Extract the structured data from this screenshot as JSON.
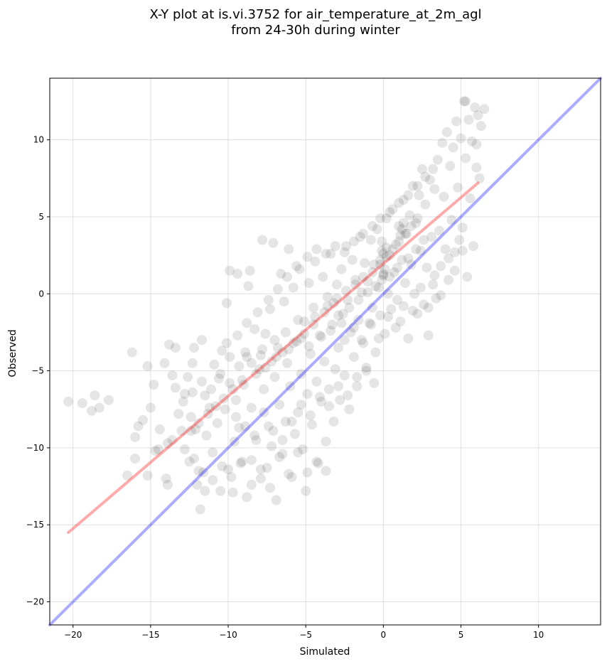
{
  "chart_data": {
    "type": "scatter",
    "title_line1": "X-Y plot at is.vi.3752 for air_temperature_at_2m_agl",
    "title_line2": "from 24-30h during winter",
    "xlabel": "Simulated",
    "ylabel": "Observed",
    "xlim": [
      -21.5,
      14
    ],
    "ylim": [
      -21.5,
      14
    ],
    "xticks": [
      -20,
      -15,
      -10,
      -5,
      0,
      5,
      10
    ],
    "yticks": [
      -20,
      -15,
      -10,
      -5,
      0,
      5,
      10
    ],
    "xtick_labels": [
      "−20",
      "−15",
      "−10",
      "−5",
      "0",
      "5",
      "10"
    ],
    "ytick_labels": [
      "−20",
      "−15",
      "−10",
      "−5",
      "0",
      "5",
      "10"
    ],
    "grid": true,
    "point_color": "#000000",
    "fit_line": {
      "color": "#ff0000",
      "x": [
        -20.3,
        6.1
      ],
      "y": [
        -15.5,
        7.2
      ]
    },
    "identity_line": {
      "color": "#0000ff",
      "x": [
        -21.5,
        14
      ],
      "y": [
        -21.5,
        14
      ]
    },
    "points": [
      [
        -20.3,
        -7.0
      ],
      [
        -19.4,
        -7.1
      ],
      [
        -18.8,
        -7.6
      ],
      [
        -18.6,
        -6.6
      ],
      [
        -18.3,
        -7.4
      ],
      [
        -17.7,
        -6.9
      ],
      [
        -16.5,
        -11.8
      ],
      [
        -16.2,
        -3.8
      ],
      [
        -16.0,
        -10.7
      ],
      [
        -15.5,
        -8.2
      ],
      [
        -15.2,
        -4.7
      ],
      [
        -15.2,
        -11.8
      ],
      [
        -15.0,
        -7.4
      ],
      [
        -14.7,
        -10.2
      ],
      [
        -14.5,
        -10.1
      ],
      [
        -14.0,
        -12.0
      ],
      [
        -13.9,
        -12.4
      ],
      [
        -13.8,
        -3.3
      ],
      [
        -13.6,
        -9.5
      ],
      [
        -13.4,
        -3.5
      ],
      [
        -13.2,
        -7.8
      ],
      [
        -13.0,
        -8.9
      ],
      [
        -12.8,
        -6.5
      ],
      [
        -12.6,
        -5.4
      ],
      [
        -12.5,
        -10.9
      ],
      [
        -12.4,
        -8.0
      ],
      [
        -12.3,
        -4.5
      ],
      [
        -12.2,
        -3.5
      ],
      [
        -12.1,
        -8.8
      ],
      [
        -12.0,
        -12.4
      ],
      [
        -11.9,
        -11.5
      ],
      [
        -11.8,
        -14.0
      ],
      [
        -11.7,
        -3.0
      ],
      [
        -11.5,
        -6.6
      ],
      [
        -11.5,
        -12.8
      ],
      [
        -11.4,
        -9.2
      ],
      [
        -11.2,
        -7.4
      ],
      [
        -11.0,
        -10.3
      ],
      [
        -10.9,
        -4.6
      ],
      [
        -10.7,
        -8.4
      ],
      [
        -10.6,
        -5.5
      ],
      [
        -10.5,
        -12.8
      ],
      [
        -10.4,
        -3.7
      ],
      [
        -10.2,
        -7.5
      ],
      [
        -10.1,
        -0.6
      ],
      [
        -10.0,
        -11.4
      ],
      [
        -9.9,
        -4.1
      ],
      [
        -9.9,
        1.5
      ],
      [
        -9.7,
        -12.9
      ],
      [
        -9.6,
        -9.6
      ],
      [
        -9.5,
        -6.9
      ],
      [
        -9.4,
        1.3
      ],
      [
        -9.3,
        -8.7
      ],
      [
        -9.2,
        -11.0
      ],
      [
        -9.0,
        -5.9
      ],
      [
        -8.9,
        -3.8
      ],
      [
        -8.8,
        -13.2
      ],
      [
        -8.7,
        0.5
      ],
      [
        -8.6,
        1.5
      ],
      [
        -8.5,
        -10.8
      ],
      [
        -8.5,
        -7.4
      ],
      [
        -8.3,
        -2.3
      ],
      [
        -8.2,
        -9.5
      ],
      [
        -8.0,
        -4.9
      ],
      [
        -7.9,
        -12.0
      ],
      [
        -7.8,
        3.5
      ],
      [
        -7.7,
        -6.2
      ],
      [
        -7.6,
        -2.6
      ],
      [
        -7.5,
        -11.3
      ],
      [
        -7.4,
        -8.6
      ],
      [
        -7.3,
        -1.0
      ],
      [
        -7.2,
        -9.9
      ],
      [
        -7.1,
        3.3
      ],
      [
        -7.0,
        -5.4
      ],
      [
        -6.9,
        -13.4
      ],
      [
        -6.8,
        -3.5
      ],
      [
        -6.7,
        -7.2
      ],
      [
        -6.6,
        1.3
      ],
      [
        -6.5,
        -10.4
      ],
      [
        -6.4,
        -0.5
      ],
      [
        -6.3,
        -8.3
      ],
      [
        -6.2,
        -4.5
      ],
      [
        -6.1,
        2.9
      ],
      [
        -6.0,
        -6.0
      ],
      [
        -5.9,
        -11.9
      ],
      [
        -5.8,
        0.4
      ],
      [
        -5.7,
        -9.1
      ],
      [
        -5.6,
        -3.1
      ],
      [
        -5.5,
        -7.7
      ],
      [
        -5.4,
        1.6
      ],
      [
        -5.3,
        -5.2
      ],
      [
        -5.2,
        -10.1
      ],
      [
        -5.1,
        -1.8
      ],
      [
        -5.0,
        -12.8
      ],
      [
        -4.9,
        -6.5
      ],
      [
        -4.8,
        0.7
      ],
      [
        -4.7,
        -3.9
      ],
      [
        -4.6,
        -8.5
      ],
      [
        -4.5,
        -0.9
      ],
      [
        -4.4,
        2.1
      ],
      [
        -4.3,
        -5.7
      ],
      [
        -4.2,
        -11.0
      ],
      [
        -4.1,
        -2.7
      ],
      [
        -4.0,
        -7.0
      ],
      [
        -3.9,
        1.1
      ],
      [
        -3.8,
        -4.4
      ],
      [
        -3.7,
        -9.6
      ],
      [
        -3.6,
        -0.2
      ],
      [
        -3.5,
        -6.2
      ],
      [
        -3.4,
        2.6
      ],
      [
        -3.3,
        -2.0
      ],
      [
        -3.2,
        -8.3
      ],
      [
        -3.1,
        -4.9
      ],
      [
        -3.0,
        0.6
      ],
      [
        -2.9,
        -3.5
      ],
      [
        -2.8,
        -6.9
      ],
      [
        -2.7,
        1.6
      ],
      [
        -2.6,
        -1.3
      ],
      [
        -2.5,
        -5.3
      ],
      [
        -2.4,
        3.1
      ],
      [
        -2.3,
        -0.4
      ],
      [
        -2.2,
        -7.5
      ],
      [
        -2.1,
        -2.5
      ],
      [
        -2.0,
        2.2
      ],
      [
        -1.9,
        -4.1
      ],
      [
        -1.8,
        0.9
      ],
      [
        -1.7,
        -6.0
      ],
      [
        -1.6,
        -1.7
      ],
      [
        -1.5,
        3.7
      ],
      [
        -1.4,
        0.1
      ],
      [
        -1.3,
        -3.2
      ],
      [
        -1.2,
        2.0
      ],
      [
        -1.1,
        -5.0
      ],
      [
        -1.0,
        0.8
      ],
      [
        -0.9,
        -1.9
      ],
      [
        -0.8,
        3.5
      ],
      [
        -0.7,
        -0.9
      ],
      [
        -0.6,
        1.9
      ],
      [
        -0.5,
        -3.8
      ],
      [
        -0.4,
        4.2
      ],
      [
        -0.3,
        0.4
      ],
      [
        -0.2,
        -1.4
      ],
      [
        -0.1,
        2.8
      ],
      [
        0.0,
        1.2
      ],
      [
        0.1,
        -2.6
      ],
      [
        0.2,
        4.9
      ],
      [
        0.3,
        0.0
      ],
      [
        0.4,
        2.5
      ],
      [
        0.5,
        -1.0
      ],
      [
        0.6,
        5.5
      ],
      [
        0.7,
        1.4
      ],
      [
        0.8,
        3.2
      ],
      [
        0.9,
        -0.4
      ],
      [
        1.0,
        4.4
      ],
      [
        1.1,
        -1.8
      ],
      [
        1.2,
        2.2
      ],
      [
        1.3,
        6.1
      ],
      [
        1.4,
        0.7
      ],
      [
        1.5,
        3.9
      ],
      [
        1.6,
        -2.9
      ],
      [
        1.7,
        5.1
      ],
      [
        1.8,
        1.9
      ],
      [
        1.9,
        7.0
      ],
      [
        2.0,
        0.0
      ],
      [
        2.1,
        4.6
      ],
      [
        2.2,
        -1.3
      ],
      [
        2.3,
        6.4
      ],
      [
        2.4,
        2.8
      ],
      [
        2.5,
        8.1
      ],
      [
        2.6,
        -0.7
      ],
      [
        2.7,
        5.8
      ],
      [
        2.8,
        1.7
      ],
      [
        2.9,
        -2.7
      ],
      [
        3.0,
        7.4
      ],
      [
        3.1,
        3.7
      ],
      [
        3.2,
        0.6
      ],
      [
        3.3,
        6.8
      ],
      [
        3.4,
        -0.3
      ],
      [
        3.5,
        8.7
      ],
      [
        3.6,
        4.1
      ],
      [
        3.7,
        1.8
      ],
      [
        3.8,
        9.8
      ],
      [
        3.9,
        6.3
      ],
      [
        4.0,
        2.9
      ],
      [
        4.1,
        10.5
      ],
      [
        4.2,
        0.9
      ],
      [
        4.3,
        8.3
      ],
      [
        4.4,
        4.8
      ],
      [
        4.5,
        9.5
      ],
      [
        4.6,
        2.7
      ],
      [
        4.7,
        11.2
      ],
      [
        4.8,
        6.9
      ],
      [
        4.9,
        3.5
      ],
      [
        5.0,
        10.1
      ],
      [
        5.1,
        2.8
      ],
      [
        5.2,
        12.5
      ],
      [
        5.3,
        8.8
      ],
      [
        5.4,
        1.1
      ],
      [
        5.5,
        11.3
      ],
      [
        5.6,
        6.2
      ],
      [
        5.7,
        9.9
      ],
      [
        5.8,
        3.1
      ],
      [
        5.9,
        12.1
      ],
      [
        6.0,
        8.2
      ],
      [
        6.1,
        11.6
      ],
      [
        6.2,
        7.5
      ],
      [
        6.3,
        10.9
      ],
      [
        6.5,
        12.0
      ],
      [
        6.0,
        9.7
      ],
      [
        5.3,
        12.5
      ],
      [
        -3.8,
        -1.2
      ],
      [
        -3.2,
        -0.6
      ],
      [
        -2.7,
        -1.9
      ],
      [
        -4.4,
        -1.5
      ],
      [
        -5.1,
        -2.6
      ],
      [
        -5.8,
        -3.2
      ],
      [
        -6.5,
        -3.8
      ],
      [
        -7.2,
        -4.4
      ],
      [
        -7.9,
        -4.0
      ],
      [
        -8.5,
        -4.5
      ],
      [
        -3.6,
        -0.8
      ],
      [
        -3.0,
        -0.3
      ],
      [
        -2.4,
        0.2
      ],
      [
        -1.8,
        0.6
      ],
      [
        -1.3,
        1.1
      ],
      [
        -0.7,
        1.4
      ],
      [
        -0.2,
        1.9
      ],
      [
        0.2,
        2.4
      ],
      [
        0.6,
        2.9
      ],
      [
        1.0,
        3.4
      ],
      [
        1.4,
        3.9
      ],
      [
        1.8,
        4.4
      ],
      [
        2.2,
        4.9
      ],
      [
        -0.1,
        0.9
      ],
      [
        0.0,
        1.3
      ],
      [
        0.1,
        1.6
      ],
      [
        -0.2,
        2.2
      ],
      [
        0.0,
        2.6
      ],
      [
        0.2,
        3.0
      ],
      [
        -0.1,
        3.4
      ],
      [
        1.2,
        4.2
      ],
      [
        1.3,
        4.6
      ],
      [
        1.1,
        3.8
      ],
      [
        -4.5,
        -2.0
      ],
      [
        -5.3,
        -2.9
      ],
      [
        -6.1,
        -3.6
      ],
      [
        -6.9,
        -4.1
      ],
      [
        -7.6,
        -4.8
      ],
      [
        -8.2,
        -5.2
      ],
      [
        -2.2,
        -0.9
      ],
      [
        -1.6,
        -0.4
      ],
      [
        -1.0,
        0.1
      ],
      [
        -0.5,
        0.5
      ],
      [
        0.4,
        1.1
      ],
      [
        0.9,
        1.7
      ],
      [
        1.6,
        2.3
      ],
      [
        2.1,
        2.9
      ],
      [
        2.6,
        3.5
      ],
      [
        -9.1,
        -5.6
      ],
      [
        -9.7,
        -6.2
      ],
      [
        -10.3,
        -6.8
      ],
      [
        -10.8,
        -7.3
      ],
      [
        -11.3,
        -7.8
      ],
      [
        -11.9,
        -8.4
      ],
      [
        -12.4,
        -8.9
      ],
      [
        -3.4,
        -2.4
      ],
      [
        -2.9,
        -1.4
      ],
      [
        -4.0,
        -2.8
      ],
      [
        -4.8,
        -3.4
      ],
      [
        -5.5,
        -1.7
      ],
      [
        -6.3,
        -2.5
      ],
      [
        -7.0,
        -3.0
      ],
      [
        -7.8,
        -3.6
      ],
      [
        -8.8,
        -4.1
      ],
      [
        -2.5,
        -3.0
      ],
      [
        -1.9,
        -2.2
      ],
      [
        -1.4,
        -3.0
      ],
      [
        -0.8,
        -2.0
      ],
      [
        -0.3,
        -2.9
      ],
      [
        0.3,
        -1.5
      ],
      [
        0.8,
        -2.2
      ],
      [
        1.3,
        -0.8
      ],
      [
        1.9,
        -1.1
      ],
      [
        2.4,
        0.4
      ],
      [
        2.9,
        -0.9
      ],
      [
        3.3,
        1.2
      ],
      [
        3.7,
        -0.1
      ],
      [
        4.2,
        2.3
      ],
      [
        4.6,
        1.5
      ],
      [
        5.1,
        4.3
      ],
      [
        -9.5,
        -8.0
      ],
      [
        -8.9,
        -8.6
      ],
      [
        -8.3,
        -9.2
      ],
      [
        -7.7,
        -7.7
      ],
      [
        -7.1,
        -8.9
      ],
      [
        -6.5,
        -9.5
      ],
      [
        -5.9,
        -8.3
      ],
      [
        -5.3,
        -7.2
      ],
      [
        -4.7,
        -7.9
      ],
      [
        -4.1,
        -6.7
      ],
      [
        -3.5,
        -7.3
      ],
      [
        -2.9,
        -6.0
      ],
      [
        -2.3,
        -6.6
      ],
      [
        -1.7,
        -5.4
      ],
      [
        -1.1,
        -4.8
      ],
      [
        -0.6,
        -5.8
      ],
      [
        -12.8,
        -10.1
      ],
      [
        -12.2,
        -10.7
      ],
      [
        -11.6,
        -11.6
      ],
      [
        -11.0,
        -12.1
      ],
      [
        -10.4,
        -11.2
      ],
      [
        -9.8,
        -11.9
      ],
      [
        -9.1,
        -10.9
      ],
      [
        -8.5,
        -12.4
      ],
      [
        -7.9,
        -11.4
      ],
      [
        -7.3,
        -12.6
      ],
      [
        -6.7,
        -10.6
      ],
      [
        -6.1,
        -11.7
      ],
      [
        -5.5,
        -10.3
      ],
      [
        -4.9,
        -11.6
      ],
      [
        -4.3,
        -10.9
      ],
      [
        -3.7,
        -11.5
      ],
      [
        -13.4,
        -6.1
      ],
      [
        -12.9,
        -7.0
      ],
      [
        -12.3,
        -6.4
      ],
      [
        -11.7,
        -5.7
      ],
      [
        -11.1,
        -6.2
      ],
      [
        -10.5,
        -5.2
      ],
      [
        -9.9,
        -5.8
      ],
      [
        -9.3,
        -4.7
      ],
      [
        -10.1,
        -3.2
      ],
      [
        -9.4,
        -2.7
      ],
      [
        -8.8,
        -1.9
      ],
      [
        -8.1,
        -1.2
      ],
      [
        -7.4,
        -0.4
      ],
      [
        -6.8,
        0.3
      ],
      [
        -6.2,
        1.1
      ],
      [
        -5.6,
        1.8
      ],
      [
        -4.9,
        2.4
      ],
      [
        -4.3,
        2.9
      ],
      [
        -3.7,
        2.6
      ],
      [
        -3.1,
        3.1
      ],
      [
        -2.5,
        2.7
      ],
      [
        -1.9,
        3.4
      ],
      [
        -1.3,
        3.9
      ],
      [
        -0.7,
        4.4
      ],
      [
        -0.2,
        4.9
      ],
      [
        0.4,
        5.3
      ],
      [
        1.0,
        5.9
      ],
      [
        1.6,
        6.4
      ],
      [
        2.2,
        7.0
      ],
      [
        2.7,
        7.6
      ],
      [
        3.2,
        8.1
      ],
      [
        -14.8,
        -5.9
      ],
      [
        -14.1,
        -4.5
      ],
      [
        -13.6,
        -5.3
      ],
      [
        -15.8,
        -8.6
      ],
      [
        -16.0,
        -9.3
      ],
      [
        -14.4,
        -8.8
      ],
      [
        -13.9,
        -9.7
      ]
    ]
  }
}
